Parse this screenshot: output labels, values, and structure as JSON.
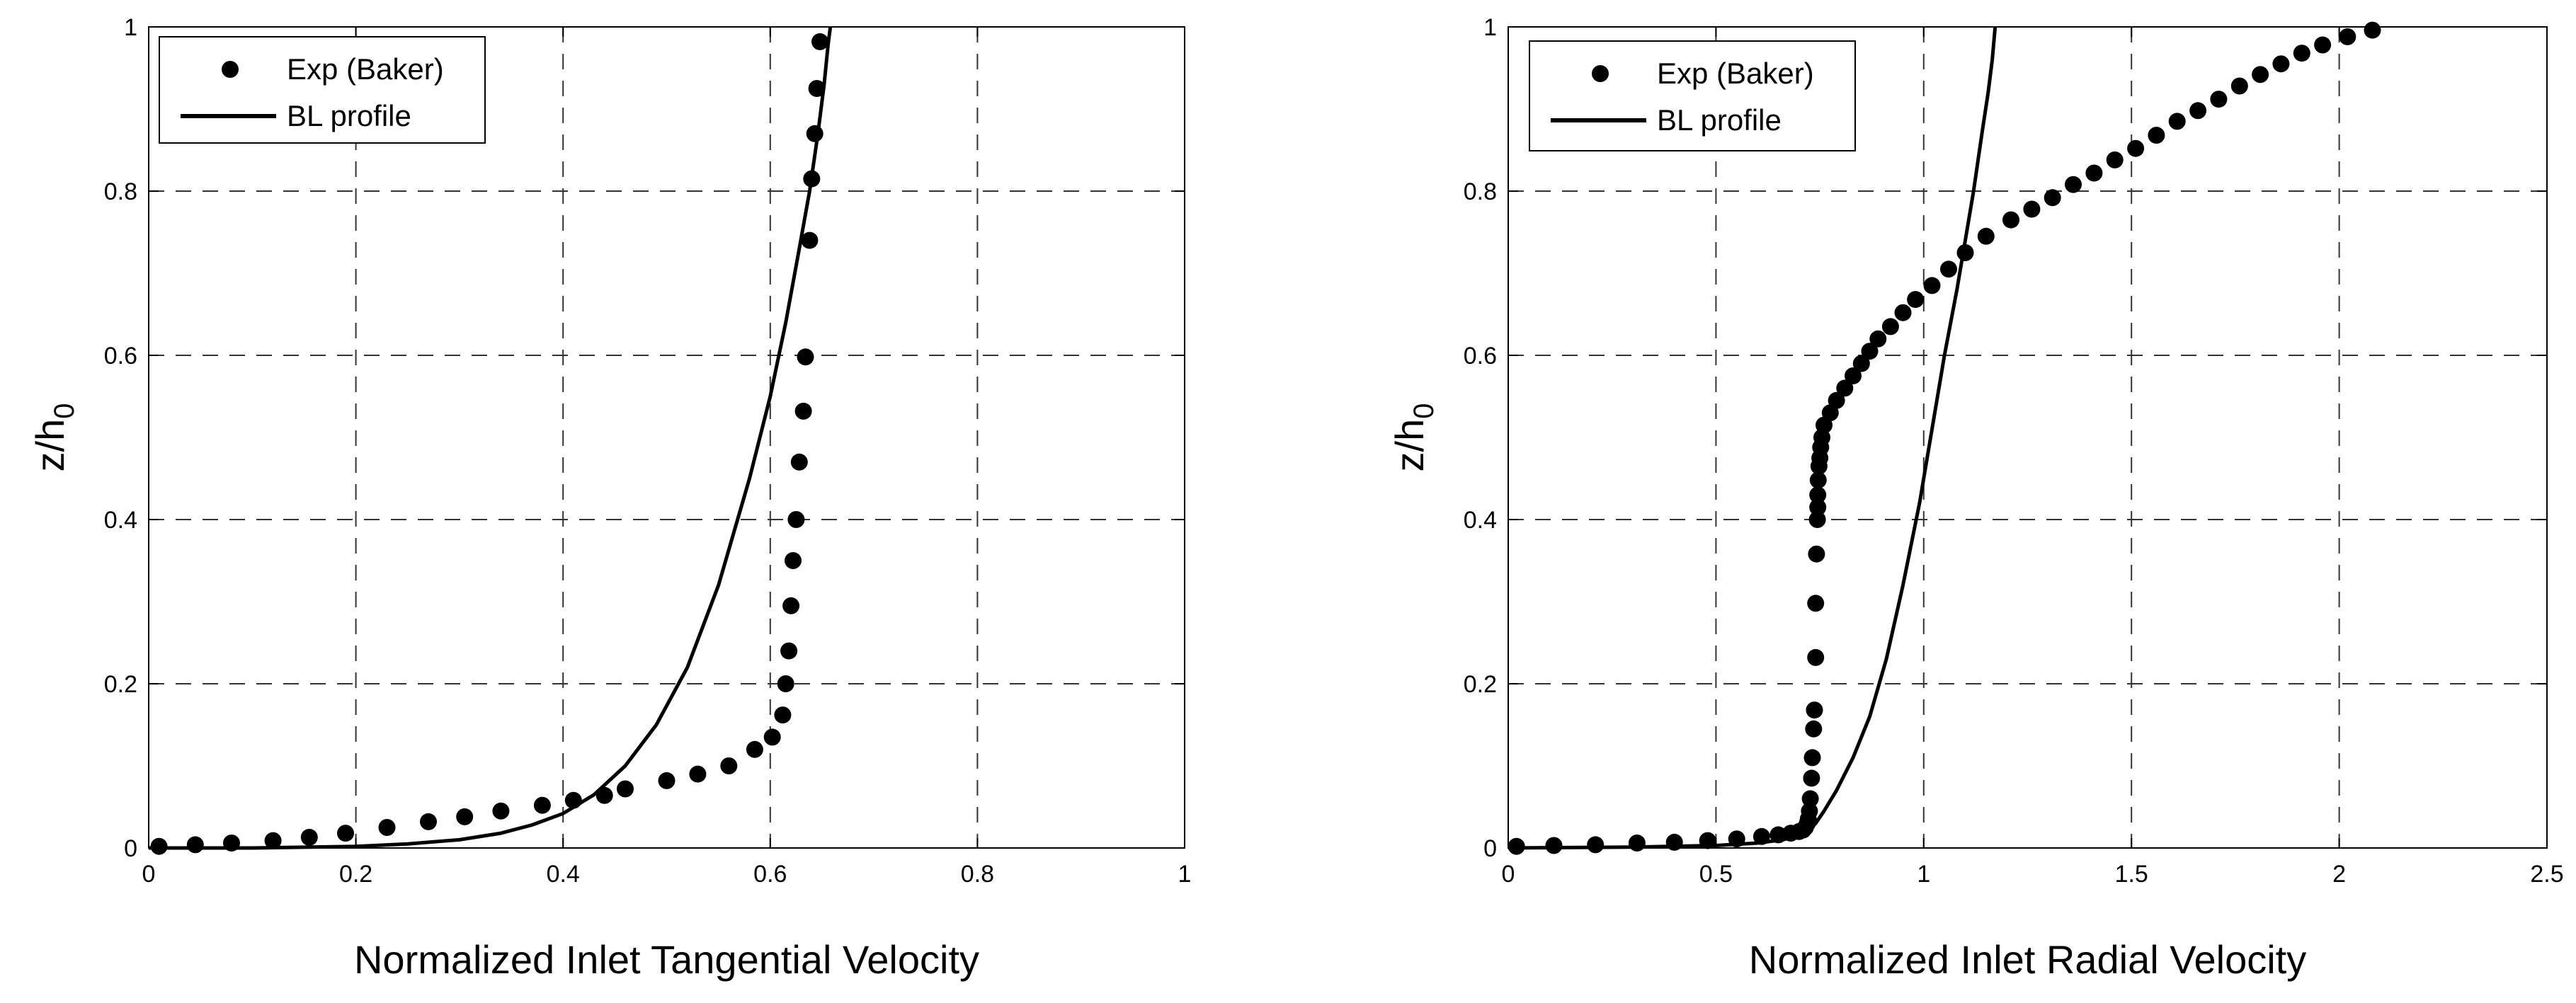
{
  "chart_data": [
    {
      "type": "scatter",
      "xlabel": "Normalized Inlet Tangential Velocity",
      "ylabel_main": "z/h",
      "ylabel_sub": "0",
      "xlim": [
        0,
        1
      ],
      "ylim": [
        0,
        1
      ],
      "xticks": [
        "0",
        "0.2",
        "0.4",
        "0.6",
        "0.8",
        "1"
      ],
      "yticks": [
        "0",
        "0.2",
        "0.4",
        "0.6",
        "0.8",
        "1"
      ],
      "grid": true,
      "legend_position": "top-left",
      "series": [
        {
          "name": "Exp (Baker)",
          "style": "markers",
          "x": [
            0.01,
            0.045,
            0.08,
            0.12,
            0.155,
            0.19,
            0.23,
            0.27,
            0.305,
            0.34,
            0.38,
            0.41,
            0.44,
            0.46,
            0.5,
            0.53,
            0.56,
            0.585,
            0.602,
            0.612,
            0.615,
            0.618,
            0.62,
            0.622,
            0.625,
            0.628,
            0.632,
            0.634,
            0.638,
            0.64,
            0.643,
            0.645,
            0.648
          ],
          "y": [
            0.002,
            0.004,
            0.006,
            0.009,
            0.013,
            0.018,
            0.025,
            0.032,
            0.038,
            0.045,
            0.052,
            0.058,
            0.064,
            0.072,
            0.082,
            0.09,
            0.1,
            0.12,
            0.135,
            0.162,
            0.2,
            0.24,
            0.295,
            0.35,
            0.4,
            0.47,
            0.532,
            0.598,
            0.74,
            0.815,
            0.87,
            0.925,
            0.982
          ]
        },
        {
          "name": "BL profile",
          "style": "line",
          "x": [
            0.0,
            0.1,
            0.2,
            0.25,
            0.3,
            0.34,
            0.37,
            0.4,
            0.43,
            0.46,
            0.49,
            0.52,
            0.55,
            0.58,
            0.6,
            0.615,
            0.628,
            0.638,
            0.646,
            0.652,
            0.656,
            0.658
          ],
          "y": [
            0.0,
            0.0,
            0.002,
            0.005,
            0.01,
            0.018,
            0.028,
            0.042,
            0.065,
            0.1,
            0.15,
            0.22,
            0.32,
            0.45,
            0.55,
            0.64,
            0.73,
            0.8,
            0.87,
            0.93,
            0.98,
            1.0
          ]
        }
      ]
    },
    {
      "type": "scatter",
      "xlabel": "Normalized Inlet Radial Velocity",
      "ylabel_main": "z/h",
      "ylabel_sub": "0",
      "xlim": [
        0,
        2.5
      ],
      "ylim": [
        0,
        1
      ],
      "xticks": [
        "0",
        "0.5",
        "1",
        "1.5",
        "2",
        "2.5"
      ],
      "yticks": [
        "0",
        "0.2",
        "0.4",
        "0.6",
        "0.8",
        "1"
      ],
      "grid": true,
      "legend_position": "top-left",
      "series": [
        {
          "name": "Exp (Baker)",
          "style": "markers",
          "x": [
            0.02,
            0.11,
            0.21,
            0.31,
            0.4,
            0.48,
            0.55,
            0.61,
            0.65,
            0.68,
            0.7,
            0.71,
            0.715,
            0.72,
            0.722,
            0.725,
            0.727,
            0.73,
            0.732,
            0.735,
            0.737,
            0.74,
            0.74,
            0.742,
            0.744,
            0.745,
            0.745,
            0.746,
            0.748,
            0.75,
            0.752,
            0.755,
            0.76,
            0.775,
            0.79,
            0.81,
            0.83,
            0.85,
            0.87,
            0.89,
            0.92,
            0.95,
            0.98,
            1.02,
            1.06,
            1.1,
            1.15,
            1.21,
            1.26,
            1.31,
            1.36,
            1.41,
            1.46,
            1.51,
            1.56,
            1.61,
            1.66,
            1.71,
            1.76,
            1.81,
            1.86,
            1.91,
            1.96,
            2.02,
            2.08
          ],
          "y": [
            0.002,
            0.003,
            0.004,
            0.006,
            0.007,
            0.009,
            0.011,
            0.014,
            0.016,
            0.018,
            0.02,
            0.022,
            0.025,
            0.03,
            0.035,
            0.045,
            0.06,
            0.085,
            0.11,
            0.145,
            0.168,
            0.232,
            0.298,
            0.358,
            0.4,
            0.415,
            0.43,
            0.448,
            0.465,
            0.475,
            0.488,
            0.5,
            0.515,
            0.53,
            0.545,
            0.56,
            0.575,
            0.59,
            0.605,
            0.62,
            0.635,
            0.652,
            0.668,
            0.685,
            0.705,
            0.725,
            0.745,
            0.765,
            0.778,
            0.792,
            0.808,
            0.822,
            0.838,
            0.852,
            0.868,
            0.885,
            0.898,
            0.912,
            0.928,
            0.942,
            0.955,
            0.968,
            0.978,
            0.988,
            0.996
          ]
        },
        {
          "name": "BL profile",
          "style": "line",
          "x": [
            0.0,
            0.3,
            0.5,
            0.6,
            0.66,
            0.7,
            0.72,
            0.74,
            0.76,
            0.79,
            0.83,
            0.87,
            0.91,
            0.95,
            0.99,
            1.02,
            1.05,
            1.08,
            1.1,
            1.12,
            1.14,
            1.155,
            1.165,
            1.172
          ],
          "y": [
            0.0,
            0.001,
            0.003,
            0.006,
            0.01,
            0.015,
            0.02,
            0.03,
            0.045,
            0.07,
            0.11,
            0.16,
            0.23,
            0.32,
            0.42,
            0.51,
            0.6,
            0.68,
            0.74,
            0.8,
            0.87,
            0.92,
            0.96,
            1.0
          ]
        }
      ]
    }
  ]
}
